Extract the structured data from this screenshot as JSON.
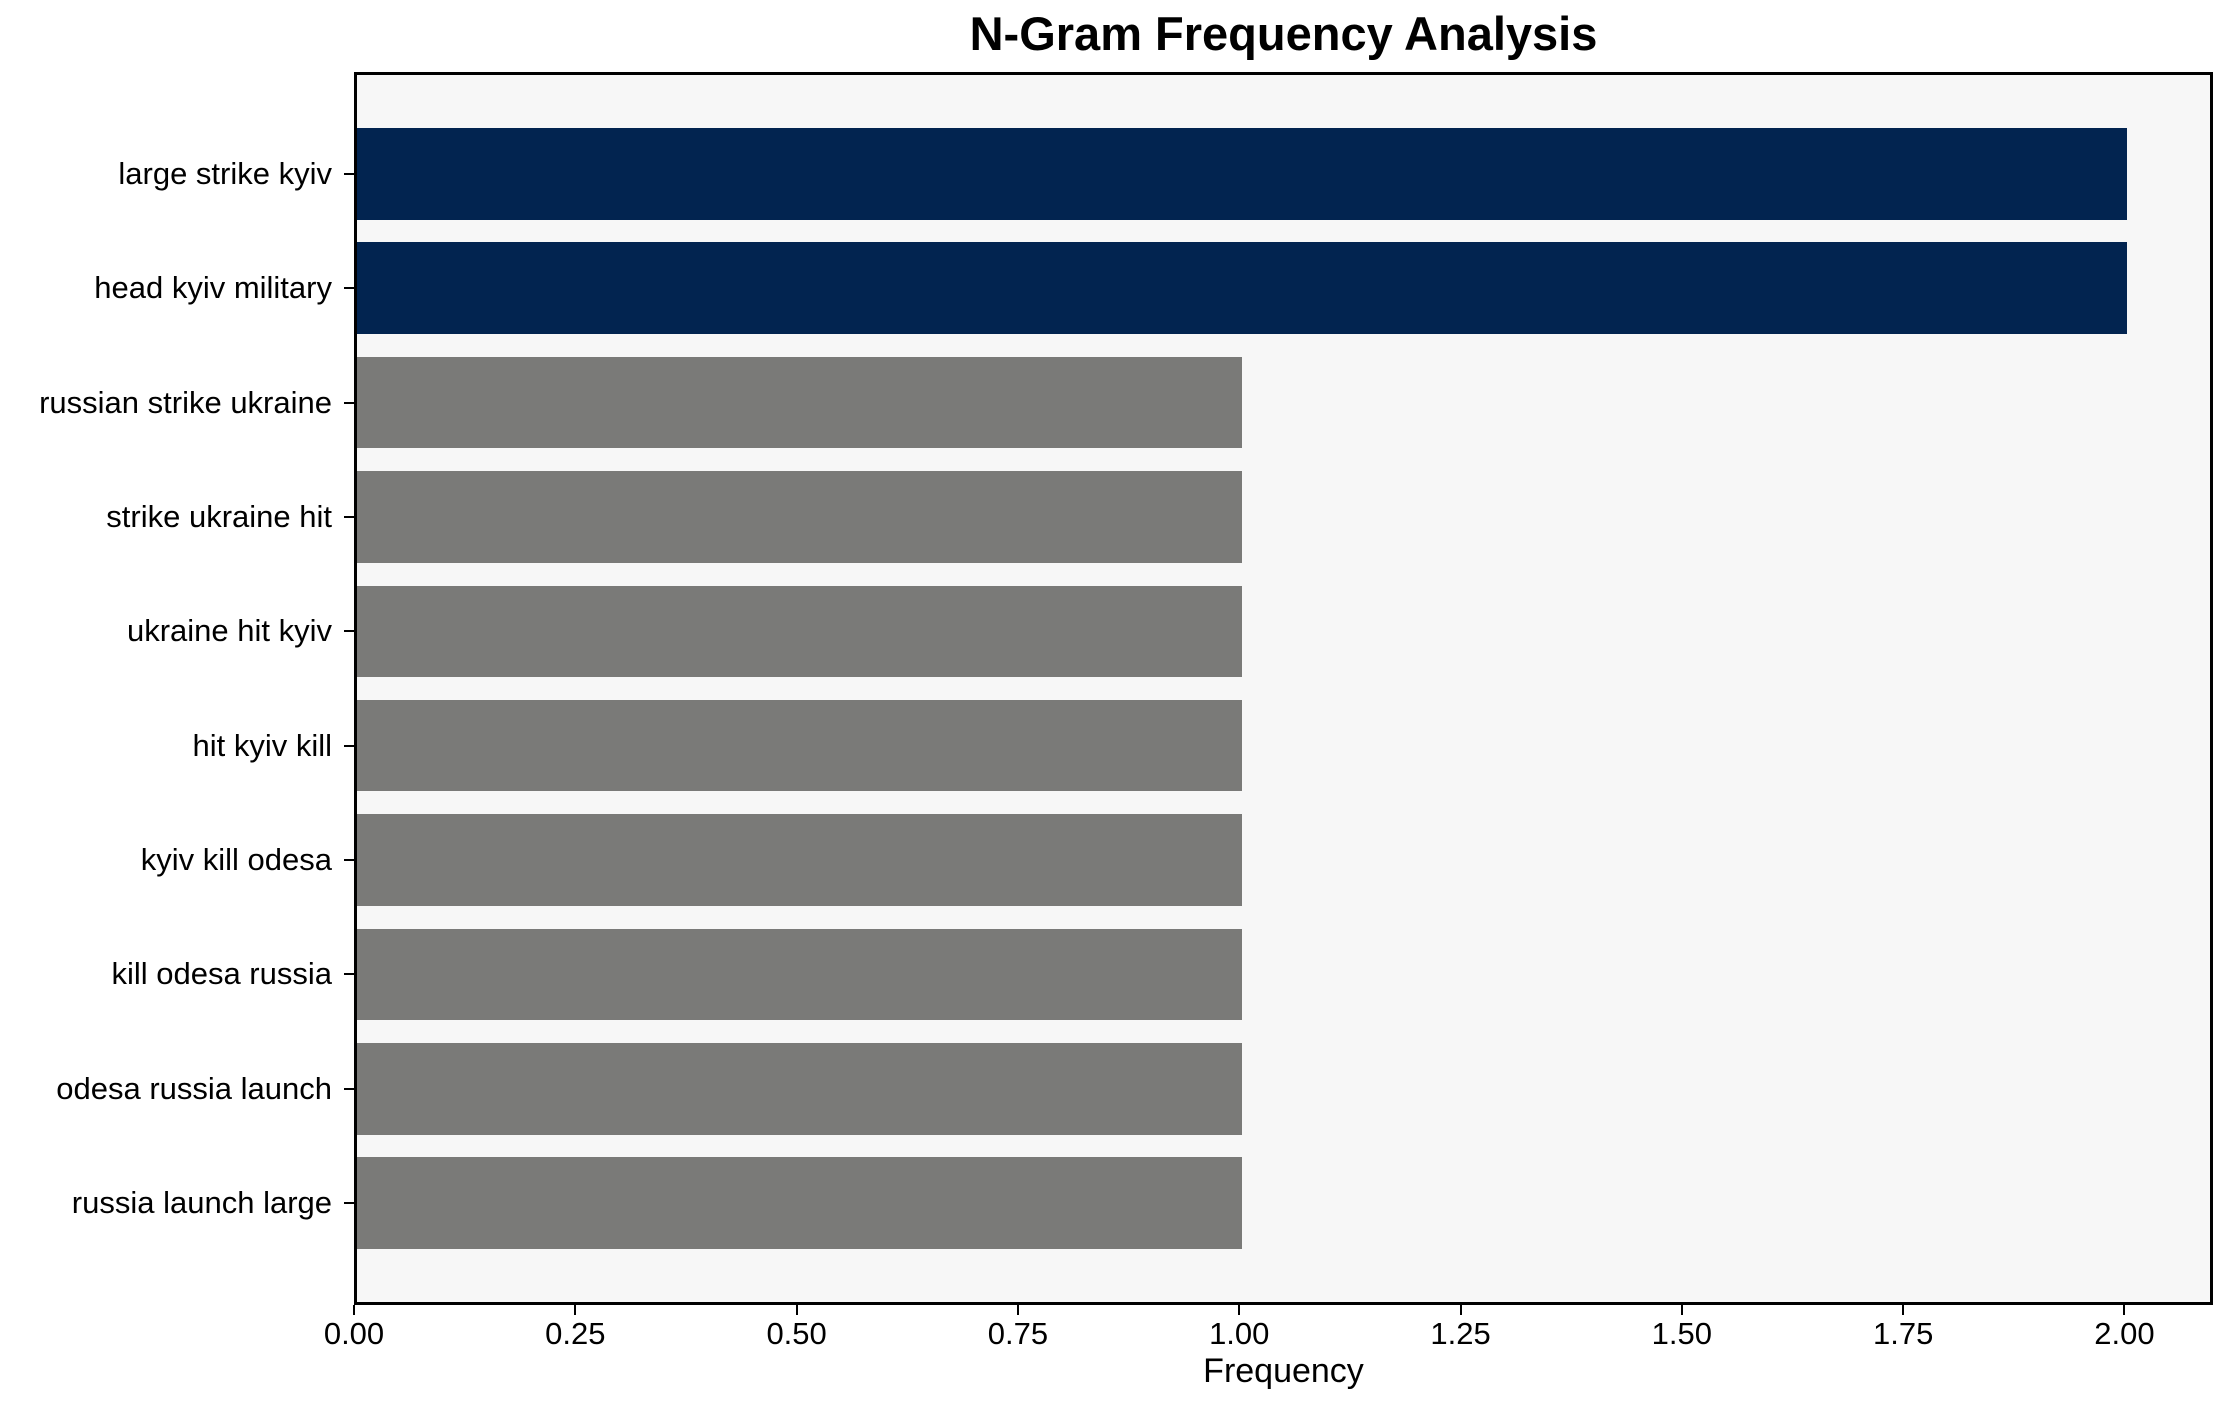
{
  "chart_data": {
    "type": "bar",
    "orientation": "horizontal",
    "title": "N-Gram Frequency Analysis",
    "xlabel": "Frequency",
    "ylabel": "",
    "categories": [
      "large strike kyiv",
      "head kyiv military",
      "russian strike ukraine",
      "strike ukraine hit",
      "ukraine hit kyiv",
      "hit kyiv kill",
      "kyiv kill odesa",
      "kill odesa russia",
      "odesa russia launch",
      "russia launch large"
    ],
    "values": [
      2,
      2,
      1,
      1,
      1,
      1,
      1,
      1,
      1,
      1
    ],
    "bar_colors": [
      "#022450",
      "#022450",
      "#7a7a78",
      "#7a7a78",
      "#7a7a78",
      "#7a7a78",
      "#7a7a78",
      "#7a7a78",
      "#7a7a78",
      "#7a7a78"
    ],
    "xlim": [
      0,
      2.1
    ],
    "xtick_values": [
      0,
      0.25,
      0.5,
      0.75,
      1.0,
      1.25,
      1.5,
      1.75,
      2.0
    ],
    "xtick_labels": [
      "0.00",
      "0.25",
      "0.50",
      "0.75",
      "1.00",
      "1.25",
      "1.50",
      "1.75",
      "2.00"
    ],
    "grid": false,
    "legend": null,
    "colors": {
      "highlight": "#022450",
      "base": "#7a7a78",
      "plot_background": "#f7f7f7",
      "figure_background": "#ffffff",
      "axis": "#000000"
    }
  }
}
